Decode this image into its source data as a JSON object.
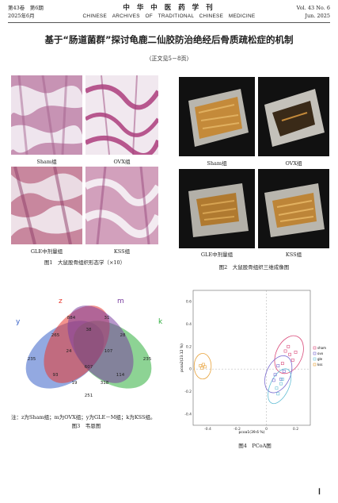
{
  "header": {
    "left_line1": "第43卷　第6期",
    "left_line2": "2025年6月",
    "center_line1": "中 华 中 医 药 学 刊",
    "center_line2": "CHINESE　ARCHIVES　OF　TRADITIONAL　CHINESE　MEDICINE",
    "right_line1": "Vol. 43 No. 6",
    "right_line2": "Jun. 2025"
  },
  "title": "基于“肠道菌群”探讨龟鹿二仙胶防治绝经后骨质疏松症的机制",
  "subtitle": "（正文见5－8页）",
  "figure1": {
    "labels": [
      "Sham组",
      "OVX组",
      "GLE中剂量组",
      "KSS组"
    ],
    "caption": "图1　大鼠股骨组织形态学（×10）"
  },
  "figure2": {
    "labels": [
      "Sham组",
      "OVX组",
      "GLE中剂量组",
      "KSS组"
    ],
    "caption": "图2　大鼠股骨组织三维成像图"
  },
  "figure3": {
    "set_labels": [
      "z",
      "m",
      "y",
      "k"
    ],
    "regions": [
      "235",
      "884",
      "31",
      "235",
      "265",
      "38",
      "28",
      "24",
      "107",
      "607",
      "93",
      "114",
      "19",
      "318",
      "251"
    ],
    "note": "注：z为Sham组；m为OVX组；y为GLE－M组；k为KSS组。",
    "caption": "图3　韦恩图",
    "colors": {
      "z": "#e8392f",
      "m": "#7b3fa0",
      "y": "#3a63c8",
      "k": "#2fae3d"
    }
  },
  "figure4": {
    "caption": "图4　PCoA图",
    "xlabel": "pcoa1(39.6 %)",
    "ylabel": "pcoa2(23.12 %)",
    "x_ticks": [
      "-0.4",
      "-0.2",
      "0",
      "0.2"
    ],
    "y_ticks": [
      "0.6",
      "0.4",
      "0.2",
      "0",
      "-0.2",
      "-0.4"
    ],
    "legend": [
      "sham",
      "ovx",
      "gle",
      "kss"
    ]
  },
  "chart_data": {
    "type": "scatter",
    "title": "",
    "xlabel": "pcoa1(39.6 %)",
    "ylabel": "pcoa2(23.12 %)",
    "xlim": [
      -0.5,
      0.3
    ],
    "ylim": [
      -0.5,
      0.7
    ],
    "grid": false,
    "legend_position": "right",
    "series": [
      {
        "name": "sham",
        "color": "#d94a7a",
        "points": [
          [
            0.13,
            0.16
          ],
          [
            0.16,
            0.13
          ],
          [
            0.18,
            0.08
          ],
          [
            0.11,
            0.05
          ],
          [
            0.2,
            0.15
          ],
          [
            0.15,
            0.2
          ]
        ]
      },
      {
        "name": "ovx",
        "color": "#7a6ad0",
        "points": [
          [
            0.06,
            -0.05
          ],
          [
            0.1,
            -0.09
          ],
          [
            0.08,
            0.03
          ],
          [
            0.12,
            -0.02
          ],
          [
            0.05,
            -0.1
          ]
        ]
      },
      {
        "name": "gle",
        "color": "#66bfd6",
        "points": [
          [
            0.07,
            -0.17
          ],
          [
            0.1,
            -0.13
          ],
          [
            0.08,
            -0.22
          ],
          [
            0.11,
            -0.09
          ]
        ]
      },
      {
        "name": "kss",
        "color": "#e8a23a",
        "points": [
          [
            -0.45,
            0.03
          ],
          [
            -0.43,
            0.04
          ],
          [
            -0.42,
            0.02
          ],
          [
            -0.44,
            0.01
          ]
        ]
      }
    ]
  },
  "page_number": "Ⅰ"
}
